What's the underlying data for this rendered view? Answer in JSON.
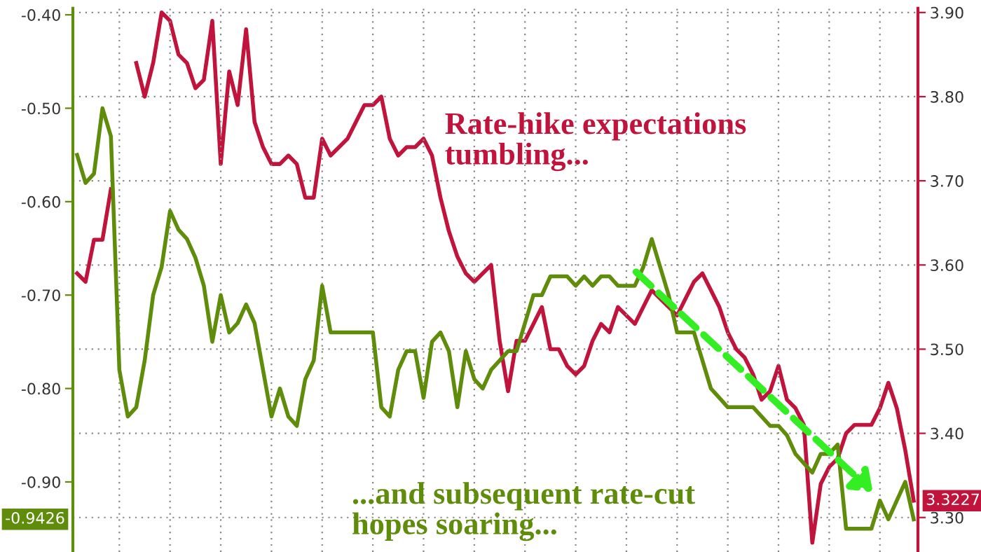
{
  "chart_data": {
    "type": "line",
    "categories": [
      null,
      null,
      null,
      null,
      null,
      null,
      null,
      null,
      null,
      null,
      null,
      null,
      null,
      null,
      null,
      null,
      null,
      null,
      null,
      null,
      null,
      null,
      null,
      null,
      null,
      null,
      null,
      null,
      null,
      null,
      null,
      null,
      null,
      null,
      null,
      null,
      null,
      null,
      null,
      null,
      null,
      null,
      null,
      null,
      null,
      null,
      null,
      null,
      null,
      null,
      null,
      null,
      null,
      null,
      null,
      null,
      null,
      null,
      null,
      null,
      null,
      null,
      null,
      null,
      null,
      null,
      null,
      null,
      null,
      null,
      null,
      null,
      null,
      null,
      null,
      null,
      null,
      null,
      null,
      null,
      null,
      null,
      null,
      null,
      null,
      null,
      null,
      null,
      null,
      null,
      null,
      null,
      null,
      null,
      null,
      null,
      null,
      null,
      null,
      null
    ],
    "series": [
      {
        "color": "#5f8c0a",
        "axis": "y",
        "values": [
          -0.55,
          -0.58,
          -0.57,
          -0.5,
          -0.53,
          -0.78,
          -0.83,
          -0.82,
          -0.77,
          -0.7,
          -0.67,
          -0.61,
          -0.63,
          -0.64,
          -0.66,
          -0.69,
          -0.75,
          -0.7,
          -0.74,
          -0.73,
          -0.71,
          -0.73,
          -0.78,
          -0.83,
          -0.8,
          -0.83,
          -0.84,
          -0.79,
          -0.77,
          -0.69,
          -0.74,
          -0.74,
          -0.74,
          -0.74,
          -0.74,
          -0.74,
          -0.82,
          -0.83,
          -0.78,
          -0.76,
          -0.76,
          -0.81,
          -0.75,
          -0.74,
          -0.76,
          -0.82,
          -0.76,
          -0.79,
          -0.8,
          -0.78,
          -0.77,
          -0.76,
          -0.76,
          -0.73,
          -0.7,
          -0.7,
          -0.68,
          -0.68,
          -0.68,
          -0.69,
          -0.68,
          -0.69,
          -0.68,
          -0.68,
          -0.69,
          -0.69,
          -0.69,
          -0.67,
          -0.64,
          -0.67,
          -0.7,
          -0.74,
          -0.74,
          -0.74,
          -0.77,
          -0.8,
          -0.81,
          -0.82,
          -0.82,
          -0.82,
          -0.82,
          -0.83,
          -0.84,
          -0.84,
          -0.85,
          -0.87,
          -0.88,
          -0.89,
          -0.87,
          -0.87,
          -0.86,
          -0.95,
          -0.95,
          -0.95,
          -0.95,
          -0.92,
          -0.94,
          -0.92,
          -0.9,
          -0.94
        ]
      },
      {
        "color": "#c0143c",
        "axis": "y2",
        "values": [
          3.59,
          3.58,
          3.63,
          3.63,
          3.69,
          null,
          null,
          3.84,
          3.8,
          3.84,
          3.9,
          3.89,
          3.85,
          3.84,
          3.81,
          3.82,
          3.89,
          3.72,
          3.83,
          3.79,
          3.88,
          3.77,
          3.74,
          3.72,
          3.72,
          3.73,
          3.72,
          3.68,
          3.68,
          3.75,
          3.73,
          3.74,
          3.75,
          3.77,
          3.79,
          3.79,
          3.8,
          3.75,
          3.73,
          3.74,
          3.74,
          3.75,
          3.73,
          3.68,
          3.64,
          3.61,
          3.59,
          3.58,
          3.59,
          3.6,
          3.51,
          3.45,
          3.51,
          3.51,
          3.53,
          3.55,
          3.5,
          3.5,
          3.48,
          3.47,
          3.48,
          3.51,
          3.53,
          3.52,
          3.55,
          3.54,
          3.53,
          3.55,
          3.57,
          3.56,
          3.55,
          3.54,
          3.56,
          3.58,
          3.59,
          3.57,
          3.55,
          3.52,
          3.5,
          3.49,
          3.47,
          3.44,
          3.45,
          3.48,
          3.44,
          3.43,
          3.41,
          3.27,
          3.34,
          3.36,
          3.37,
          3.4,
          3.41,
          3.41,
          3.41,
          3.43,
          3.46,
          3.43,
          3.38,
          3.32
        ]
      }
    ],
    "ylim": [
      -0.975,
      -0.393
    ],
    "yticks": [
      {
        "value": -0.9,
        "label": "-0.90"
      },
      {
        "value": -0.8,
        "label": "-0.80"
      },
      {
        "value": -0.7,
        "label": "-0.70"
      },
      {
        "value": -0.6,
        "label": "-0.60"
      },
      {
        "value": -0.5,
        "label": "-0.50"
      },
      {
        "value": -0.4,
        "label": "-0.40"
      }
    ],
    "y2lim": [
      3.259,
      3.905
    ],
    "y2ticks": [
      {
        "value": 3.3,
        "label": "3.30"
      },
      {
        "value": 3.4,
        "label": "3.40"
      },
      {
        "value": 3.5,
        "label": "3.50"
      },
      {
        "value": 3.6,
        "label": "3.60"
      },
      {
        "value": 3.7,
        "label": "3.70"
      },
      {
        "value": 3.8,
        "label": "3.80"
      },
      {
        "value": 3.9,
        "label": "3.90"
      }
    ],
    "grid": true,
    "legend": false,
    "line_style": "solid",
    "marker": "none",
    "annotations": [
      "Rate-hike expectations\ntumbling...",
      "...and subsequent rate-cut\nhopes soaring...",
      "-0.9426",
      "3.3227"
    ]
  }
}
